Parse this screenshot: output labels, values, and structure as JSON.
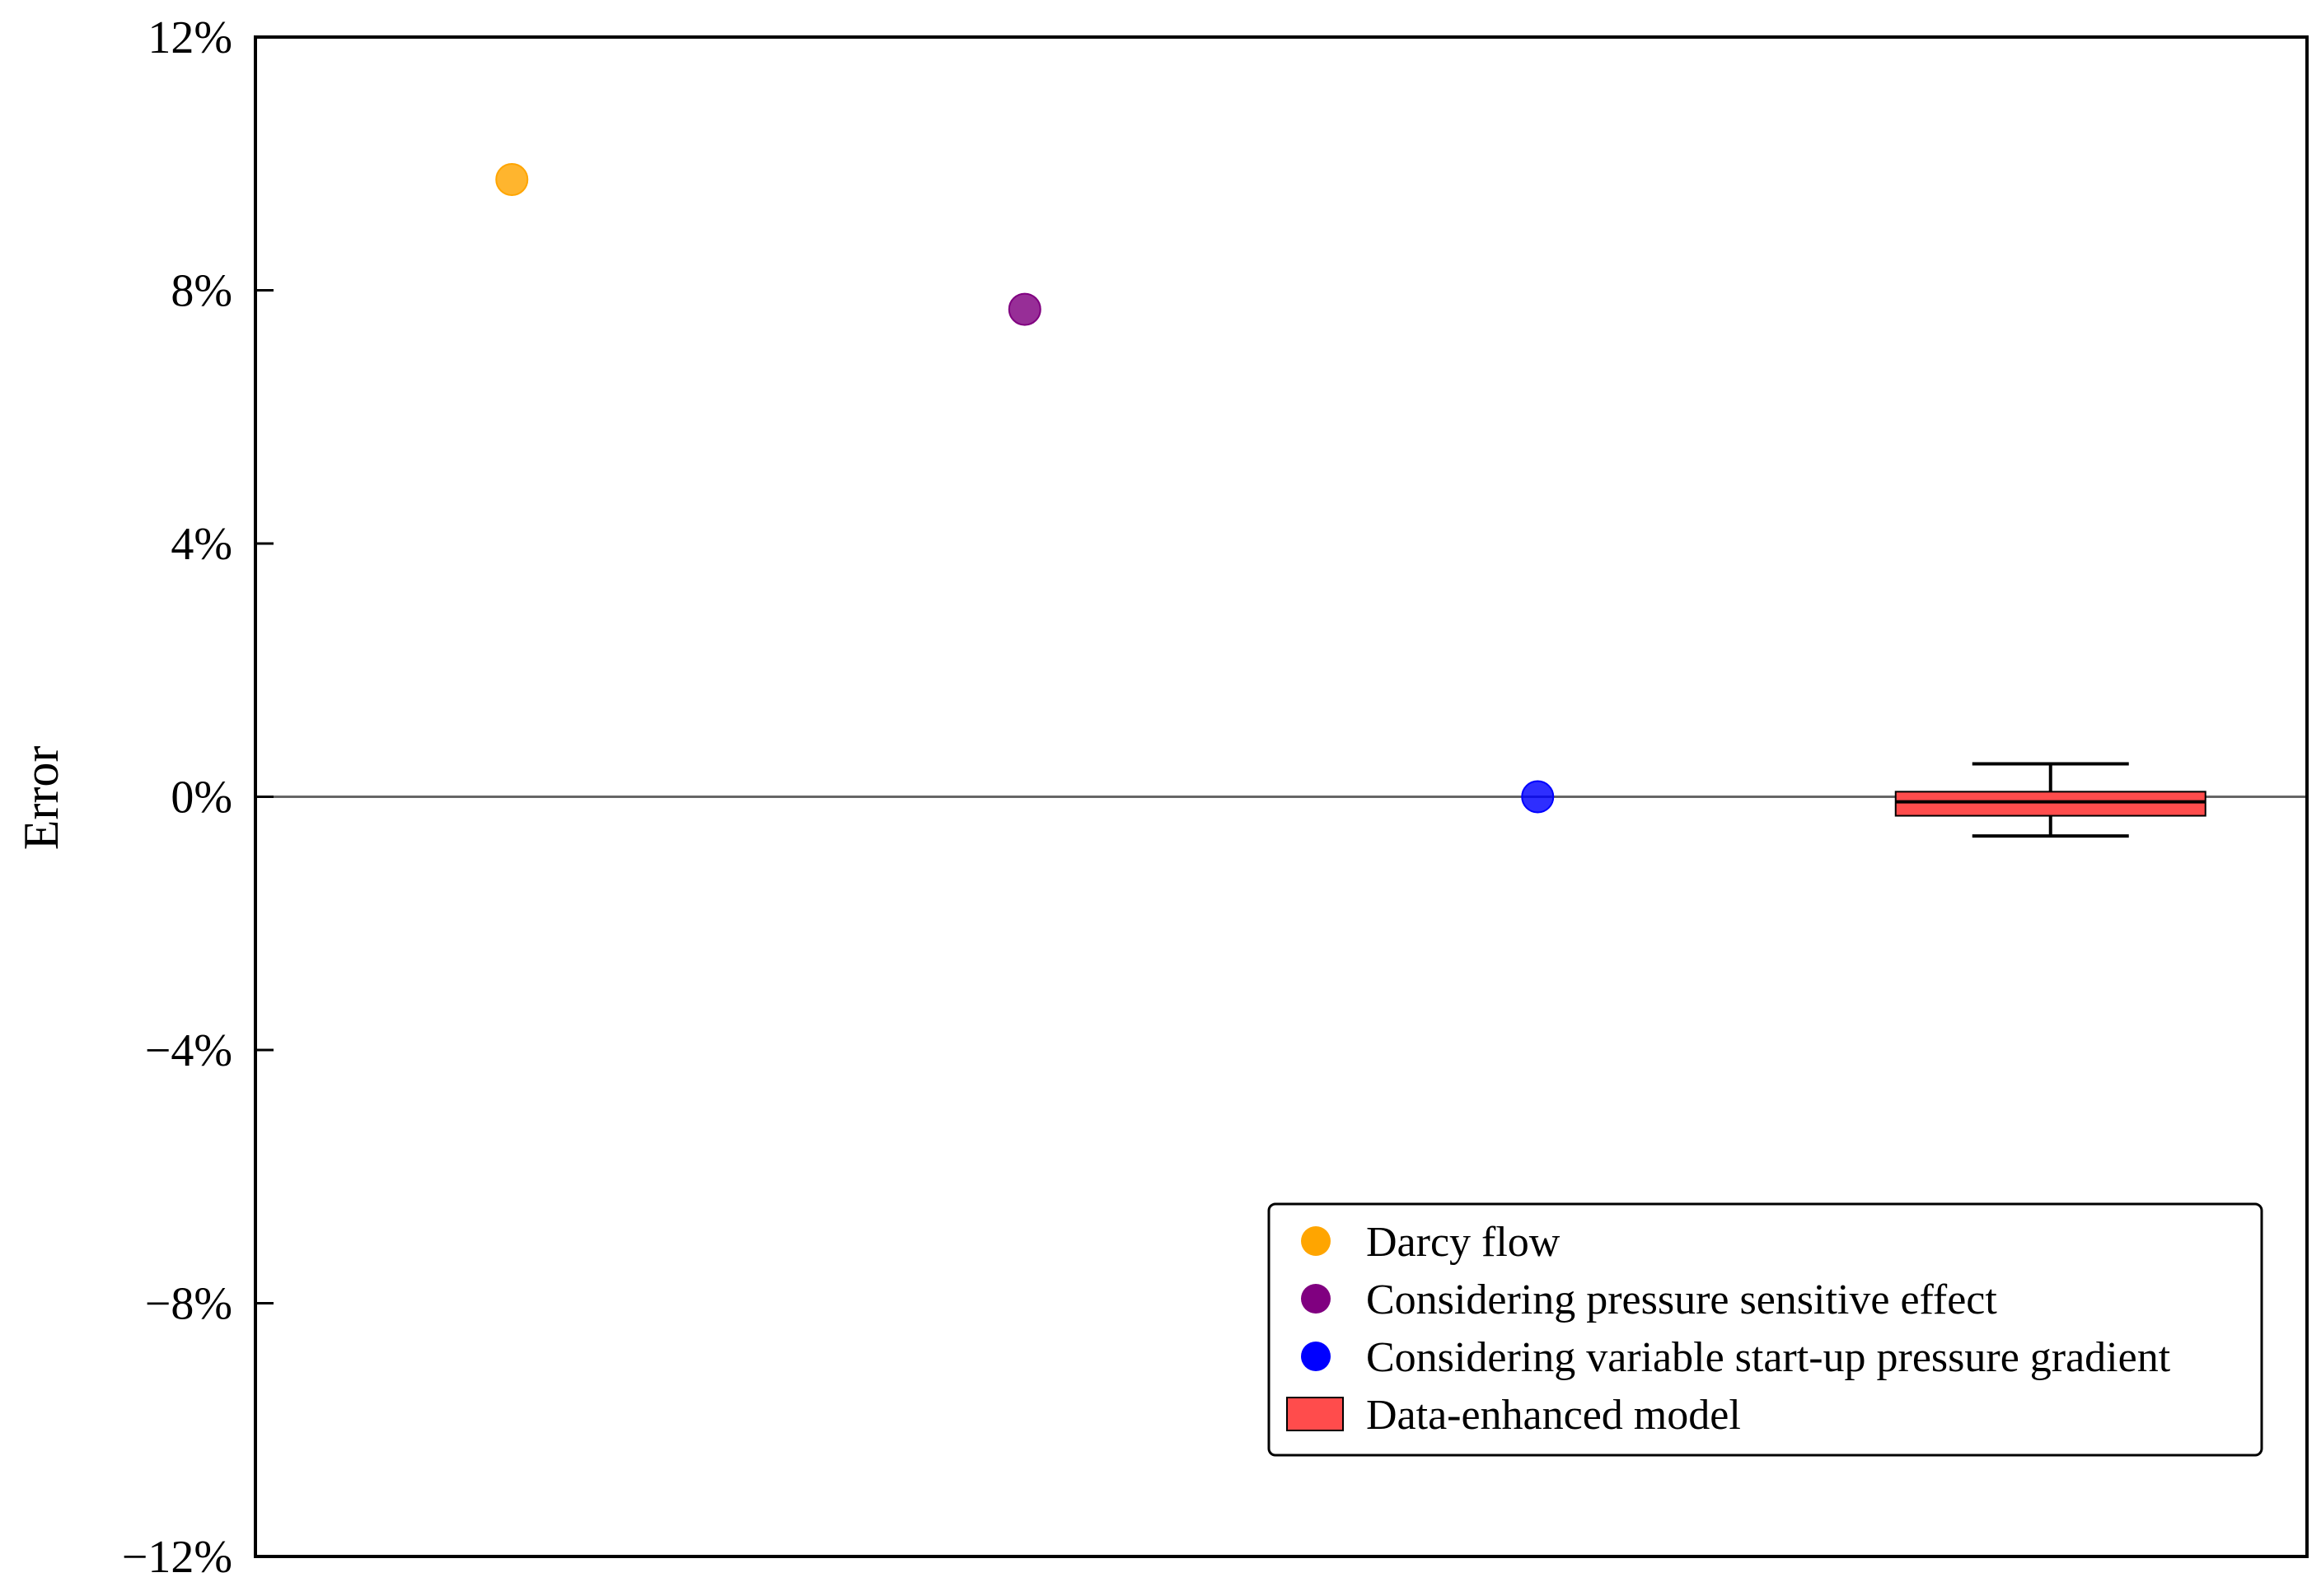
{
  "chart_data": {
    "type": "scatter",
    "ylabel": "Error",
    "xlabel": "",
    "ylim": [
      -0.12,
      0.12
    ],
    "yticks": [
      0.12,
      0.08,
      0.04,
      0,
      -0.04,
      -0.08,
      -0.12
    ],
    "ytick_labels": [
      "12%",
      "8%",
      "4%",
      "0%",
      "-4%",
      "-8%",
      "-12%"
    ],
    "grid": false,
    "zero_line": true,
    "legend_position": "bottom-right",
    "categories": [
      "Darcy flow",
      "Considering pressure sensitive effect",
      "Considering variable start-up pressure gradient",
      "Data-enhanced model"
    ],
    "series": [
      {
        "name": "Darcy flow",
        "kind": "point",
        "x": 1,
        "y": 0.0975,
        "color": "#FFA500"
      },
      {
        "name": "Considering pressure sensitive effect",
        "kind": "point",
        "x": 2,
        "y": 0.077,
        "color": "#800080"
      },
      {
        "name": "Considering variable start-up pressure gradient",
        "kind": "point",
        "x": 3,
        "y": 0.0,
        "color": "#0000FF"
      },
      {
        "name": "Data-enhanced model",
        "kind": "box",
        "x": 4,
        "min": -0.0062,
        "q1": -0.003,
        "median": -0.0008,
        "q3": 0.0008,
        "max": 0.0052,
        "color": "#FF4C4C"
      }
    ]
  }
}
